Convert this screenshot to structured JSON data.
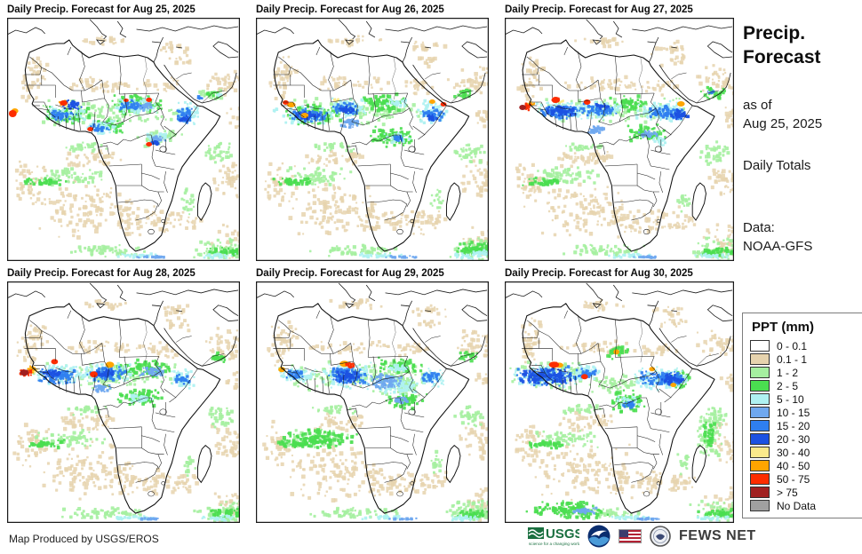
{
  "panels": [
    {
      "title": "Daily Precip. Forecast for Aug 25, 2025",
      "spots": [
        [
          33,
          89,
          185,
          35,
          2
        ],
        [
          38,
          97,
          64,
          25,
          3
        ],
        [
          118,
          85,
          66,
          27,
          3
        ],
        [
          148,
          123,
          57,
          26,
          2
        ],
        [
          95,
          112,
          44,
          22,
          3
        ],
        [
          38,
          99,
          56,
          21,
          4
        ],
        [
          116,
          87,
          62,
          23,
          4
        ],
        [
          88,
          113,
          42,
          20,
          4
        ],
        [
          192,
          91,
          32,
          31,
          4
        ],
        [
          158,
          127,
          34,
          15,
          4
        ],
        [
          212,
          77,
          40,
          19,
          2
        ],
        [
          228,
          81,
          24,
          11,
          3
        ],
        [
          238,
          83,
          13,
          7,
          4
        ],
        [
          46,
          102,
          36,
          15,
          6
        ],
        [
          62,
          91,
          26,
          13,
          7
        ],
        [
          128,
          91,
          33,
          15,
          6
        ],
        [
          148,
          94,
          27,
          13,
          5
        ],
        [
          194,
          99,
          25,
          21,
          6
        ],
        [
          199,
          109,
          15,
          11,
          7
        ],
        [
          160,
          131,
          27,
          12,
          5
        ],
        [
          165,
          137,
          14,
          9,
          7
        ],
        [
          93,
          118,
          27,
          12,
          6
        ],
        [
          217,
          87,
          11,
          7,
          6
        ],
        [
          58,
          91,
          14,
          9,
          9
        ],
        [
          61,
          93,
          9,
          6,
          10
        ],
        [
          2,
          104,
          9,
          8,
          10
        ],
        [
          5,
          102,
          8,
          6,
          9
        ],
        [
          93,
          123,
          7,
          5,
          10
        ],
        [
          161,
          90,
          7,
          5,
          10
        ],
        [
          161,
          140,
          7,
          5,
          10
        ],
        [
          135,
          91,
          6,
          4,
          10
        ],
        [
          64,
          95,
          10,
          6,
          8
        ]
      ]
    },
    {
      "title": "Daily Precip. Forecast for Aug 26, 2025",
      "spots": [
        [
          26,
          87,
          195,
          37,
          2
        ],
        [
          30,
          95,
          74,
          27,
          3
        ],
        [
          28,
          98,
          64,
          24,
          4
        ],
        [
          34,
          101,
          54,
          19,
          6
        ],
        [
          42,
          104,
          34,
          13,
          7
        ],
        [
          82,
          89,
          50,
          25,
          4
        ],
        [
          88,
          94,
          38,
          17,
          6
        ],
        [
          94,
          98,
          24,
          11,
          7
        ],
        [
          116,
          83,
          64,
          25,
          3
        ],
        [
          148,
          89,
          32,
          13,
          4
        ],
        [
          184,
          91,
          40,
          31,
          4
        ],
        [
          191,
          98,
          29,
          21,
          6
        ],
        [
          197,
          106,
          16,
          12,
          7
        ],
        [
          130,
          121,
          60,
          27,
          3
        ],
        [
          146,
          127,
          34,
          16,
          4
        ],
        [
          156,
          131,
          20,
          10,
          6
        ],
        [
          96,
          112,
          28,
          15,
          5
        ],
        [
          18,
          101,
          10,
          7,
          4
        ],
        [
          36,
          95,
          10,
          6,
          9
        ],
        [
          52,
          107,
          9,
          6,
          9
        ],
        [
          31,
          93,
          7,
          5,
          10
        ],
        [
          88,
          89,
          10,
          6,
          8
        ],
        [
          201,
          92,
          7,
          5,
          9
        ],
        [
          214,
          95,
          7,
          5,
          10
        ],
        [
          228,
          79,
          28,
          14,
          3
        ],
        [
          233,
          250,
          58,
          19,
          3
        ],
        [
          243,
          260,
          37,
          10,
          4
        ]
      ]
    },
    {
      "title": "Daily Precip. Forecast for Aug 27, 2025",
      "spots": [
        [
          26,
          87,
          200,
          35,
          2
        ],
        [
          31,
          92,
          76,
          25,
          4
        ],
        [
          36,
          95,
          60,
          20,
          6
        ],
        [
          46,
          98,
          40,
          14,
          7
        ],
        [
          20,
          95,
          12,
          11,
          10
        ],
        [
          24,
          93,
          13,
          9,
          9
        ],
        [
          17,
          98,
          8,
          6,
          11
        ],
        [
          55,
          89,
          10,
          7,
          10
        ],
        [
          63,
          91,
          9,
          6,
          8
        ],
        [
          82,
          92,
          60,
          24,
          4
        ],
        [
          91,
          97,
          44,
          16,
          6
        ],
        [
          93,
          92,
          8,
          6,
          10
        ],
        [
          106,
          95,
          21,
          10,
          7
        ],
        [
          122,
          85,
          50,
          22,
          3
        ],
        [
          150,
          91,
          66,
          28,
          4
        ],
        [
          166,
          97,
          49,
          20,
          6
        ],
        [
          191,
          102,
          28,
          16,
          7
        ],
        [
          203,
          94,
          9,
          6,
          9
        ],
        [
          141,
          117,
          54,
          25,
          3
        ],
        [
          154,
          125,
          28,
          12,
          5
        ],
        [
          170,
          132,
          27,
          14,
          4
        ],
        [
          228,
          75,
          36,
          18,
          3
        ],
        [
          236,
          80,
          14,
          8,
          6
        ],
        [
          96,
          119,
          25,
          13,
          5
        ]
      ]
    },
    {
      "title": "Daily Precip. Forecast for Aug 28, 2025",
      "spots": [
        [
          26,
          89,
          194,
          35,
          2
        ],
        [
          28,
          92,
          70,
          27,
          4
        ],
        [
          32,
          96,
          54,
          22,
          6
        ],
        [
          38,
          99,
          28,
          12,
          7
        ],
        [
          12,
          98,
          19,
          12,
          10
        ],
        [
          15,
          100,
          10,
          7,
          11
        ],
        [
          22,
          95,
          14,
          10,
          9
        ],
        [
          27,
          98,
          10,
          7,
          8
        ],
        [
          51,
          88,
          8,
          6,
          10
        ],
        [
          84,
          89,
          64,
          28,
          4
        ],
        [
          91,
          95,
          48,
          20,
          6
        ],
        [
          101,
          99,
          27,
          12,
          7
        ],
        [
          96,
          102,
          9,
          7,
          10
        ],
        [
          114,
          91,
          10,
          7,
          9
        ],
        [
          141,
          87,
          54,
          24,
          3
        ],
        [
          151,
          95,
          34,
          16,
          5
        ],
        [
          186,
          97,
          34,
          27,
          4
        ],
        [
          192,
          103,
          22,
          16,
          6
        ],
        [
          121,
          119,
          64,
          25,
          3
        ],
        [
          136,
          125,
          34,
          14,
          4
        ],
        [
          98,
          115,
          25,
          14,
          5
        ],
        [
          118,
          91,
          42,
          19,
          3
        ],
        [
          230,
          79,
          30,
          15,
          3
        ]
      ]
    },
    {
      "title": "Daily Precip. Forecast for Aug 29, 2025",
      "spots": [
        [
          23,
          89,
          187,
          37,
          2
        ],
        [
          131,
          97,
          76,
          38,
          2
        ],
        [
          24,
          95,
          50,
          21,
          4
        ],
        [
          30,
          99,
          32,
          13,
          6
        ],
        [
          26,
          97,
          8,
          6,
          9
        ],
        [
          74,
          89,
          66,
          35,
          4
        ],
        [
          82,
          94,
          50,
          26,
          6
        ],
        [
          89,
          98,
          34,
          18,
          7
        ],
        [
          97,
          90,
          11,
          7,
          9
        ],
        [
          101,
          91,
          14,
          9,
          10
        ],
        [
          109,
          92,
          8,
          5,
          8
        ],
        [
          136,
          85,
          60,
          22,
          3
        ],
        [
          148,
          92,
          34,
          14,
          4
        ],
        [
          126,
          103,
          50,
          22,
          5
        ],
        [
          138,
          106,
          54,
          26,
          4
        ],
        [
          184,
          95,
          38,
          28,
          4
        ],
        [
          190,
          101,
          25,
          16,
          6
        ],
        [
          146,
          125,
          54,
          22,
          3
        ],
        [
          158,
          129,
          23,
          11,
          5
        ],
        [
          229,
          78,
          30,
          15,
          3
        ],
        [
          26,
          165,
          97,
          28,
          3
        ]
      ]
    },
    {
      "title": "Daily Precip. Forecast for Aug 30, 2025",
      "spots": [
        [
          4,
          88,
          100,
          38,
          2
        ],
        [
          7,
          91,
          89,
          32,
          4
        ],
        [
          11,
          94,
          78,
          27,
          6
        ],
        [
          15,
          97,
          66,
          21,
          7
        ],
        [
          52,
          91,
          12,
          7,
          10
        ],
        [
          59,
          92,
          10,
          6,
          9
        ],
        [
          76,
          93,
          39,
          22,
          4
        ],
        [
          82,
          97,
          28,
          15,
          6
        ],
        [
          90,
          105,
          8,
          6,
          10
        ],
        [
          93,
          103,
          74,
          25,
          2
        ],
        [
          116,
          68,
          32,
          22,
          3
        ],
        [
          128,
          77,
          7,
          6,
          9
        ],
        [
          146,
          95,
          74,
          30,
          4
        ],
        [
          156,
          100,
          58,
          22,
          6
        ],
        [
          181,
          103,
          32,
          16,
          7
        ],
        [
          170,
          97,
          7,
          5,
          9
        ],
        [
          195,
          115,
          7,
          5,
          9
        ],
        [
          121,
          122,
          49,
          30,
          3
        ],
        [
          128,
          128,
          34,
          18,
          4
        ],
        [
          136,
          133,
          20,
          12,
          6
        ],
        [
          186,
          97,
          38,
          27,
          3
        ],
        [
          192,
          105,
          22,
          14,
          4
        ],
        [
          224,
          147,
          34,
          62,
          2
        ],
        [
          231,
          157,
          20,
          34,
          3
        ],
        [
          20,
          245,
          106,
          27,
          3
        ],
        [
          76,
          255,
          35,
          10,
          5
        ]
      ]
    }
  ],
  "sidebar": {
    "title_line1": "Precip.",
    "title_line2": "Forecast",
    "as_of_label": "as of",
    "as_of_date": "Aug 25, 2025",
    "totals_label": "Daily Totals",
    "data_label": "Data:",
    "data_source": "NOAA-GFS"
  },
  "legend": {
    "title": "PPT (mm)",
    "items": [
      {
        "label": "0 - 0.1",
        "color": "#FFFFFF"
      },
      {
        "label": "0.1 - 1",
        "color": "#E6D3AE"
      },
      {
        "label": "1 - 2",
        "color": "#A5EFA0"
      },
      {
        "label": "2 - 5",
        "color": "#4ADE50"
      },
      {
        "label": "5 - 10",
        "color": "#AFF1F1"
      },
      {
        "label": "10 - 15",
        "color": "#6FA8EF"
      },
      {
        "label": "15 - 20",
        "color": "#2F7FEF"
      },
      {
        "label": "20 - 30",
        "color": "#1C52E2"
      },
      {
        "label": "30 - 40",
        "color": "#F9E98C"
      },
      {
        "label": "40 - 50",
        "color": "#FFA500"
      },
      {
        "label": "50 - 75",
        "color": "#FC2D00"
      },
      {
        "label": "> 75",
        "color": "#A02020"
      },
      {
        "label": "No Data",
        "color": "#A0A0A0"
      }
    ]
  },
  "footer": {
    "credit": "Map Produced by USGS/EROS",
    "usgs_label": "USGS",
    "usgs_tagline": "science for a changing world",
    "fewsnet_label": "FEWS NET"
  },
  "map": {
    "band_colors": [
      "#FFFFFF",
      "#E6D3AE",
      "#A5EFA0",
      "#4ADE50",
      "#AFF1F1",
      "#6FA8EF",
      "#2F7FEF",
      "#1C52E2",
      "#F9E98C",
      "#FFA500",
      "#FC2D00",
      "#A02020",
      "#A0A0A0"
    ],
    "base_spots": [
      [
        16,
        38,
        36,
        46,
        1
      ],
      [
        78,
        18,
        74,
        17,
        1
      ],
      [
        168,
        24,
        58,
        19,
        1
      ],
      [
        220,
        50,
        72,
        42,
        1
      ],
      [
        248,
        96,
        42,
        30,
        1
      ],
      [
        58,
        64,
        112,
        22,
        1
      ],
      [
        158,
        66,
        52,
        24,
        1
      ],
      [
        52,
        146,
        74,
        26,
        1
      ],
      [
        32,
        180,
        124,
        72,
        1
      ],
      [
        6,
        156,
        44,
        62,
        1
      ],
      [
        133,
        210,
        78,
        37,
        1
      ],
      [
        123,
        200,
        27,
        48,
        1
      ],
      [
        233,
        156,
        57,
        52,
        1
      ],
      [
        232,
        230,
        68,
        46,
        1
      ],
      [
        188,
        214,
        42,
        27,
        1
      ],
      [
        10,
        58,
        30,
        40,
        1
      ],
      [
        95,
        148,
        40,
        20,
        1
      ],
      [
        180,
        38,
        40,
        20,
        1
      ],
      [
        28,
        166,
        88,
        25,
        2
      ],
      [
        16,
        178,
        58,
        13,
        3
      ],
      [
        213,
        246,
        82,
        31,
        2
      ],
      [
        226,
        256,
        57,
        15,
        3
      ],
      [
        220,
        264,
        47,
        9,
        4
      ],
      [
        62,
        138,
        58,
        15,
        2
      ],
      [
        226,
        138,
        42,
        30,
        2
      ],
      [
        201,
        191,
        19,
        32,
        2
      ],
      [
        58,
        254,
        112,
        17,
        2
      ],
      [
        118,
        264,
        62,
        8,
        4
      ],
      [
        148,
        267,
        42,
        5,
        5
      ]
    ]
  }
}
